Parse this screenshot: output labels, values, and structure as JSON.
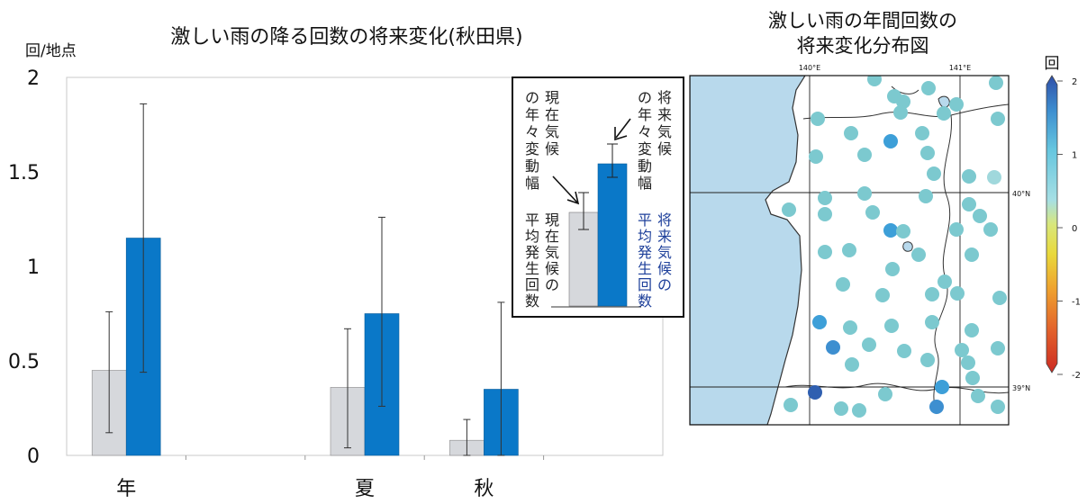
{
  "chart_data": [
    {
      "type": "bar",
      "title": "激しい雨の降る回数の将来変化(秋田県)",
      "ylabel": "回/地点",
      "ylim": [
        0,
        2
      ],
      "yticks": [
        "0",
        "0.5",
        "1",
        "1.5",
        "2"
      ],
      "categories": [
        "年",
        "",
        "夏",
        "秋",
        ""
      ],
      "series": [
        {
          "name": "現在気候の平均発生回数",
          "color": "#d6d8dc",
          "values": [
            0.45,
            null,
            0.36,
            0.08,
            null
          ],
          "err_low": [
            0.12,
            null,
            0.04,
            0.0,
            null
          ],
          "err_high": [
            0.76,
            null,
            0.67,
            0.19,
            null
          ]
        },
        {
          "name": "将来気候の平均発生回数",
          "color": "#0a78c8",
          "values": [
            1.15,
            null,
            0.75,
            0.35,
            null
          ],
          "err_low": [
            0.44,
            null,
            0.26,
            0.0,
            null
          ],
          "err_high": [
            1.86,
            null,
            1.26,
            0.81,
            null
          ]
        }
      ],
      "legend": {
        "placement": "top-right",
        "current_variability": "現在気候の年々変動幅",
        "future_variability": "将来気候の年々変動幅",
        "current_mean": "現在気候の平均発生回数",
        "future_mean": "将来気候の平均発生回数",
        "current_mean_color": "#222222",
        "future_mean_color": "#1d3f9a"
      }
    },
    {
      "type": "heatmap",
      "title_line1": "激しい雨の年間回数の",
      "title_line2": "将来変化分布図",
      "colorbar_title": "回",
      "colorbar_ticks": [
        "2",
        "1",
        "0",
        "-1",
        "-2"
      ],
      "colorbar_colors": [
        "#2f4fa8",
        "#3d8fd0",
        "#66c6df",
        "#a6dfe4",
        "#d8e77c",
        "#e9d93b",
        "#efa12e",
        "#e2602b",
        "#cc2a22"
      ],
      "lon_labels": [
        "140°E",
        "141°E"
      ],
      "lat_labels": [
        "40°N",
        "39°N"
      ],
      "sea_color": "#b8d9ec",
      "land_color": "#ffffff"
    }
  ]
}
